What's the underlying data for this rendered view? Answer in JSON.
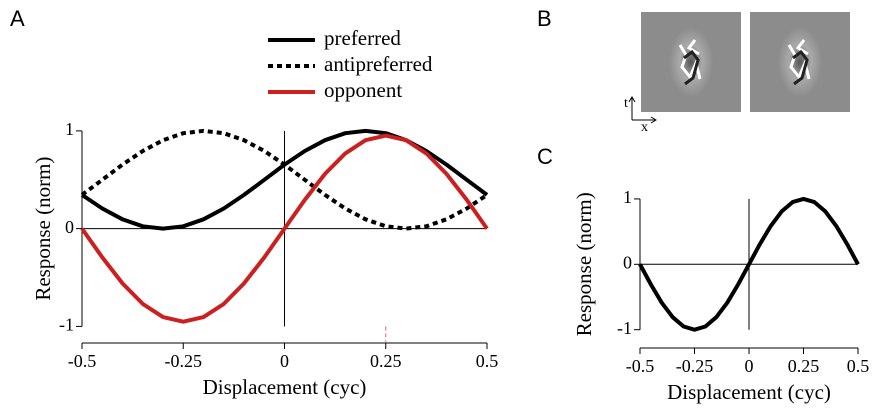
{
  "chart_data": [
    {
      "type": "line",
      "panel": "A",
      "xlabel": "Displacement (cyc)",
      "ylabel": "Response (norm)",
      "x": [
        -0.5,
        -0.45,
        -0.4,
        -0.35,
        -0.3,
        -0.25,
        -0.2,
        -0.15,
        -0.1,
        -0.05,
        0,
        0.05,
        0.1,
        0.15,
        0.2,
        0.25,
        0.3,
        0.35,
        0.4,
        0.45,
        0.5
      ],
      "series": [
        {
          "name": "preferred",
          "color": "#000000",
          "style": "solid",
          "values": [
            0.345,
            0.206,
            0.095,
            0.024,
            0,
            0.024,
            0.095,
            0.206,
            0.345,
            0.5,
            0.655,
            0.794,
            0.905,
            0.976,
            1,
            0.976,
            0.905,
            0.794,
            0.655,
            0.5,
            0.345
          ]
        },
        {
          "name": "antipreferred",
          "color": "#000000",
          "style": "dotted",
          "values": [
            0.345,
            0.5,
            0.655,
            0.794,
            0.905,
            0.976,
            1,
            0.976,
            0.905,
            0.794,
            0.655,
            0.5,
            0.345,
            0.206,
            0.095,
            0.024,
            0,
            0.024,
            0.095,
            0.206,
            0.345
          ]
        },
        {
          "name": "opponent",
          "color": "#cc1f1f",
          "style": "solid",
          "values": [
            0,
            -0.294,
            -0.56,
            -0.77,
            -0.905,
            -0.952,
            -0.905,
            -0.77,
            -0.56,
            -0.294,
            0,
            0.294,
            0.56,
            0.77,
            0.905,
            0.952,
            0.905,
            0.77,
            0.56,
            0.294,
            0
          ]
        }
      ],
      "xlim": [
        -0.5,
        0.5
      ],
      "ylim": [
        -1.17,
        1.05
      ],
      "xticks": [
        -0.5,
        -0.25,
        0,
        0.25,
        0.5
      ],
      "yticks": [
        -1,
        0,
        1
      ],
      "zero_lines": true,
      "legend": "top",
      "vline": {
        "x": 0.25,
        "color": "#e06060"
      }
    },
    {
      "type": "line",
      "panel": "C",
      "xlabel": "Displacement (cyc)",
      "ylabel": "Response (norm)",
      "x": [
        -0.5,
        -0.45,
        -0.4,
        -0.35,
        -0.3,
        -0.25,
        -0.2,
        -0.15,
        -0.1,
        -0.05,
        0,
        0.05,
        0.1,
        0.15,
        0.2,
        0.25,
        0.3,
        0.35,
        0.4,
        0.45,
        0.5
      ],
      "series": [
        {
          "color": "#000000",
          "style": "solid",
          "values": [
            0,
            -0.309,
            -0.588,
            -0.809,
            -0.951,
            -1,
            -0.951,
            -0.809,
            -0.588,
            -0.309,
            0,
            0.309,
            0.588,
            0.809,
            0.951,
            1,
            0.951,
            0.809,
            0.588,
            0.309,
            0
          ]
        }
      ],
      "xlim": [
        -0.5,
        0.5
      ],
      "ylim": [
        -1.28,
        1.06
      ],
      "xticks": [
        -0.5,
        -0.25,
        0,
        0.25,
        0.5
      ],
      "yticks": [
        -1,
        0,
        1
      ],
      "zero_lines": true
    }
  ],
  "filters": {
    "panel": "B",
    "t_label": "t",
    "x_label": "x"
  }
}
